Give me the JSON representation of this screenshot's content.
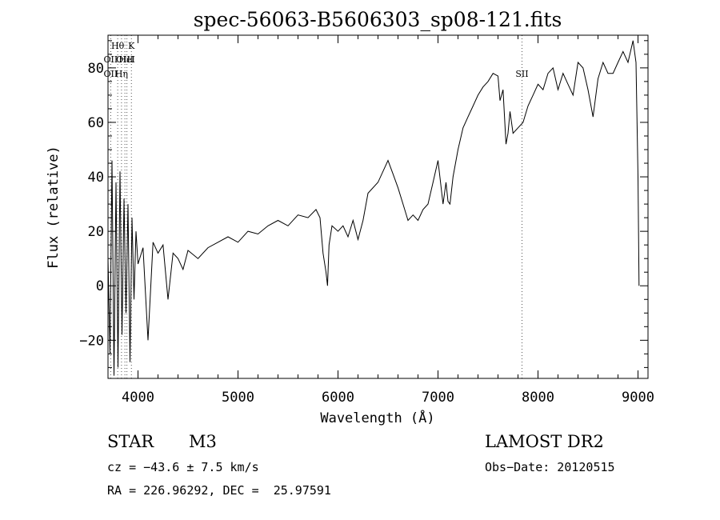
{
  "chart_data": {
    "type": "line",
    "title": "spec-56063-B5606303_sp08-121.fits",
    "xlabel": "Wavelength (Å)",
    "ylabel": "Flux (relative)",
    "xlim": [
      3700,
      9100
    ],
    "ylim": [
      -34,
      92
    ],
    "xticks": [
      4000,
      5000,
      6000,
      7000,
      8000,
      9000
    ],
    "yticks": [
      -20,
      0,
      20,
      40,
      60,
      80
    ],
    "grid": false,
    "line_color": "#000000",
    "spectrum": {
      "x": [
        3700,
        3720,
        3740,
        3760,
        3780,
        3800,
        3820,
        3840,
        3860,
        3880,
        3900,
        3920,
        3940,
        3960,
        3980,
        4000,
        4050,
        4100,
        4150,
        4200,
        4250,
        4300,
        4350,
        4400,
        4450,
        4500,
        4600,
        4700,
        4800,
        4900,
        5000,
        5100,
        5200,
        5300,
        5400,
        5500,
        5600,
        5700,
        5780,
        5820,
        5850,
        5880,
        5895,
        5910,
        5940,
        6000,
        6050,
        6100,
        6150,
        6200,
        6250,
        6300,
        6400,
        6500,
        6550,
        6600,
        6650,
        6700,
        6750,
        6800,
        6850,
        6900,
        6950,
        7000,
        7050,
        7080,
        7100,
        7120,
        7150,
        7200,
        7250,
        7300,
        7350,
        7400,
        7450,
        7500,
        7550,
        7600,
        7620,
        7650,
        7680,
        7700,
        7720,
        7750,
        7800,
        7850,
        7900,
        7950,
        8000,
        8050,
        8100,
        8150,
        8200,
        8250,
        8300,
        8350,
        8400,
        8450,
        8500,
        8550,
        8600,
        8650,
        8700,
        8750,
        8800,
        8850,
        8900,
        8950,
        8980,
        9000,
        9010
      ],
      "y": [
        10,
        -25,
        46,
        -33,
        38,
        -30,
        42,
        -18,
        32,
        -10,
        30,
        -28,
        25,
        -5,
        20,
        8,
        14,
        -20,
        16,
        12,
        15,
        -5,
        12,
        10,
        6,
        13,
        10,
        14,
        16,
        18,
        16,
        20,
        19,
        22,
        24,
        22,
        26,
        25,
        28,
        25,
        12,
        5,
        0,
        15,
        22,
        20,
        22,
        18,
        24,
        17,
        24,
        34,
        38,
        46,
        41,
        36,
        30,
        24,
        26,
        24,
        28,
        30,
        38,
        46,
        30,
        38,
        31,
        30,
        40,
        50,
        58,
        62,
        66,
        70,
        73,
        75,
        78,
        77,
        68,
        72,
        52,
        56,
        64,
        56,
        58,
        60,
        66,
        70,
        74,
        72,
        78,
        80,
        72,
        78,
        74,
        70,
        82,
        80,
        72,
        62,
        76,
        82,
        78,
        78,
        82,
        86,
        82,
        90,
        82,
        40,
        0
      ]
    },
    "line_markers": [
      {
        "label": "Hθ",
        "x": 3797,
        "row": 1
      },
      {
        "label": "K",
        "x": 3934,
        "row": 1
      },
      {
        "label": "OII",
        "x": 3727,
        "row": 2
      },
      {
        "label": "HeI",
        "x": 3889,
        "row": 2
      },
      {
        "label": "OIII",
        "x": 3869,
        "row": 2
      },
      {
        "label": "OII",
        "x": 3727,
        "row": 3
      },
      {
        "label": "Hη",
        "x": 3835,
        "row": 3
      },
      {
        "label": "SII",
        "x": 7840,
        "row": 3
      }
    ]
  },
  "info": {
    "object_class": "STAR",
    "subclass": "M3",
    "survey": "LAMOST DR2",
    "redshift_line": "cz = −43.6 ± 7.5 km/s",
    "obs_date": "Obs−Date: 20120515",
    "coords": "RA = 226.96292, DEC =  25.97591"
  }
}
